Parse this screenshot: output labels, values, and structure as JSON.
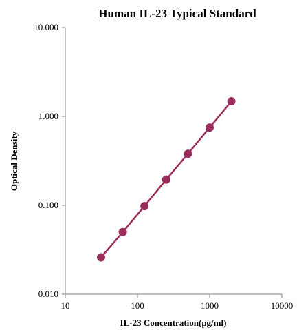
{
  "chart_data": {
    "type": "line",
    "title": "Human  IL-23 Typical Standard",
    "xlabel": "IL-23 Concentration(pg/ml)",
    "ylabel": "Optical Density",
    "x_scale": "log",
    "y_scale": "log",
    "xlim": [
      10,
      10000
    ],
    "ylim": [
      0.01,
      10
    ],
    "x_ticks": [
      "10",
      "100",
      "1000",
      "10000"
    ],
    "y_ticks": [
      "0.010",
      "0.100",
      "1.000",
      "10.000"
    ],
    "grid": false,
    "legend": "none",
    "series": [
      {
        "color": "#9b2d5c",
        "points": [
          {
            "x": 31.25,
            "y": 0.026
          },
          {
            "x": 62.5,
            "y": 0.05
          },
          {
            "x": 125,
            "y": 0.098
          },
          {
            "x": 250,
            "y": 0.195
          },
          {
            "x": 500,
            "y": 0.38
          },
          {
            "x": 1000,
            "y": 0.75
          },
          {
            "x": 2000,
            "y": 1.48
          }
        ]
      }
    ]
  }
}
